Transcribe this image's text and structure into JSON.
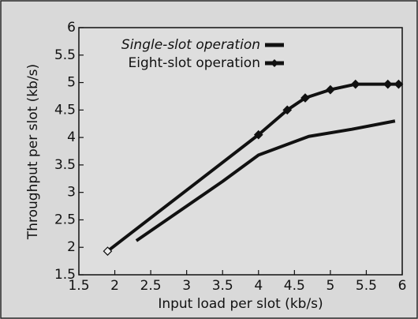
{
  "chart_data": {
    "type": "line",
    "xlabel": "Input load per slot (kb/s)",
    "ylabel": "Throughput per slot (kb/s)",
    "xlim": [
      1.5,
      6
    ],
    "xticks": [
      1.5,
      2,
      2.5,
      3,
      3.5,
      4,
      4.5,
      5,
      5.5,
      6
    ],
    "ylim": [
      1.5,
      6
    ],
    "yticks": [
      1.5,
      2,
      2.5,
      3,
      3.5,
      4,
      4.5,
      5,
      5.5,
      6
    ],
    "legend": "upper left",
    "series": [
      {
        "name": "Single-slot operation",
        "color": "#111111",
        "x": [
          2.3,
          3.5,
          4.0,
          4.7,
          5.3,
          5.9
        ],
        "values": [
          2.12,
          3.2,
          3.68,
          4.02,
          4.15,
          4.3
        ]
      },
      {
        "name": "Eight-slot operation",
        "color": "#111111",
        "marker": "diamond",
        "x": [
          1.9,
          4.0,
          4.4,
          4.65,
          5.0,
          5.35,
          5.8,
          5.95
        ],
        "values": [
          1.93,
          4.05,
          4.5,
          4.72,
          4.87,
          4.97,
          4.97,
          4.97
        ]
      }
    ]
  }
}
